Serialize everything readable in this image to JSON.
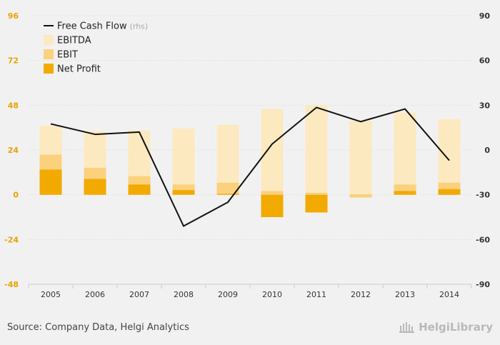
{
  "chart_data": {
    "type": "bar",
    "categories": [
      "2005",
      "2006",
      "2007",
      "2008",
      "2009",
      "2010",
      "2011",
      "2012",
      "2013",
      "2014"
    ],
    "series": [
      {
        "name": "EBITDA",
        "kind": "bar",
        "axis": "left",
        "color": "#fde9c0",
        "values": [
          37,
          34,
          34.5,
          35.5,
          37.5,
          46,
          48,
          39.5,
          44,
          40.5
        ]
      },
      {
        "name": "EBIT",
        "kind": "bar",
        "axis": "left",
        "color": "#fbd17e",
        "values": [
          21.5,
          14.5,
          10,
          5.5,
          6.5,
          2,
          1,
          -1.5,
          5.5,
          6.5
        ]
      },
      {
        "name": "Net Profit",
        "kind": "bar",
        "axis": "left",
        "color": "#f2a900",
        "values": [
          13.5,
          8.5,
          5.5,
          2.5,
          0.5,
          -12,
          -9.5,
          0,
          2,
          3
        ]
      },
      {
        "name": "Free Cash Flow",
        "kind": "line",
        "axis": "right",
        "color": "#111111",
        "values": [
          17.5,
          10.5,
          12,
          -51,
          -35,
          4,
          28.5,
          19,
          27.5,
          -7
        ]
      }
    ],
    "y_left": {
      "min": -48,
      "max": 96,
      "ticks": [
        "96",
        "72",
        "48",
        "24",
        "0",
        "-24",
        "-48"
      ]
    },
    "y_right": {
      "min": -90,
      "max": 90,
      "ticks": [
        "90",
        "60",
        "30",
        "0",
        "-30",
        "-60",
        "-90"
      ]
    },
    "legend": {
      "placement": "top-left",
      "items": [
        {
          "label": "Free Cash Flow",
          "suffix": "(rhs)"
        },
        {
          "label": "EBITDA"
        },
        {
          "label": "EBIT"
        },
        {
          "label": "Net Profit"
        }
      ]
    },
    "grid": {
      "horizontal": true,
      "vertical": false
    }
  },
  "footer": {
    "source": "Source: Company Data, Helgi Analytics",
    "brand": "HelgiLibrary"
  }
}
